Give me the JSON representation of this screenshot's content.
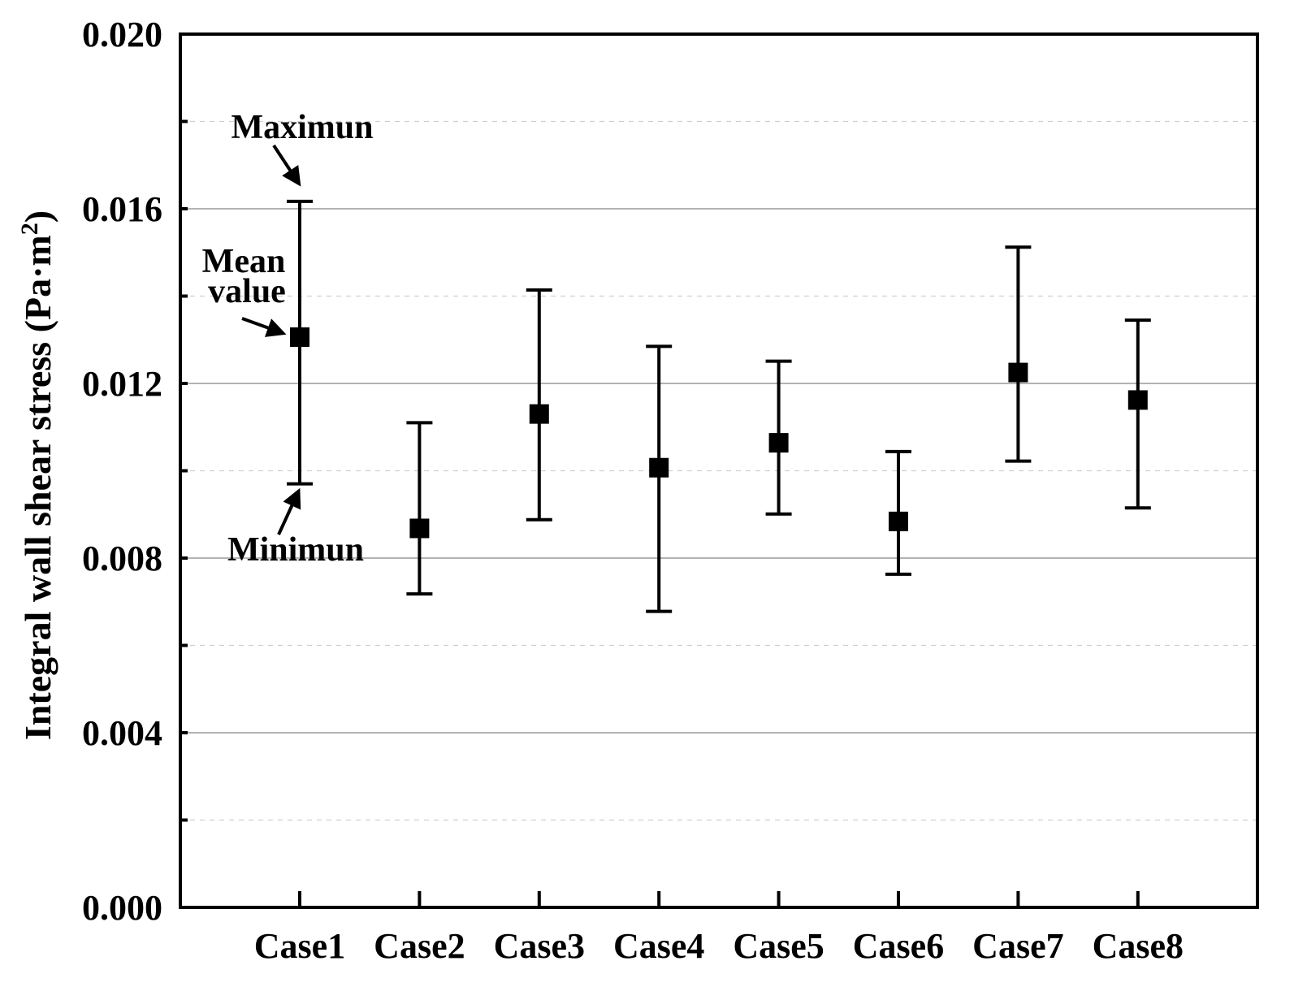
{
  "chart_data": {
    "type": "errorbar",
    "title": "",
    "xlabel": "",
    "ylabel": "Integral wall shear stress (Pa·m²)",
    "ylabel_parts": {
      "main": "Integral wall shear stress (Pa·m",
      "sup": "2",
      "close": ")"
    },
    "ylim": [
      0.0,
      0.02
    ],
    "yticks": [
      "0.000",
      "0.004",
      "0.008",
      "0.012",
      "0.016",
      "0.020"
    ],
    "ytick_values": [
      0.0,
      0.004,
      0.008,
      0.012,
      0.016,
      0.02
    ],
    "minor_ytick_values": [
      0.002,
      0.006,
      0.01,
      0.014,
      0.018
    ],
    "grid": true,
    "categories": [
      "Case1",
      "Case2",
      "Case3",
      "Case4",
      "Case5",
      "Case6",
      "Case7",
      "Case8"
    ],
    "series": [
      {
        "name": "Integral wall shear stress",
        "mean": [
          0.01306,
          0.00868,
          0.0113,
          0.01007,
          0.01064,
          0.00884,
          0.01225,
          0.01162
        ],
        "max": [
          0.01617,
          0.0111,
          0.01414,
          0.01285,
          0.01251,
          0.01044,
          0.01512,
          0.01345
        ],
        "min": [
          0.0097,
          0.00718,
          0.00888,
          0.00678,
          0.00901,
          0.00763,
          0.01022,
          0.00915
        ]
      }
    ],
    "annotations": [
      {
        "text": "Maximun",
        "points_to": "Case1 max"
      },
      {
        "text": "Mean",
        "points_to": "Case1 mean"
      },
      {
        "text": "value",
        "points_to": "Case1 mean"
      },
      {
        "text": "Minimun",
        "points_to": "Case1 min"
      }
    ],
    "colors": {
      "marker": "#000000",
      "grid_major": "#9a9a9a",
      "grid_minor": "#cfcfcf",
      "axis": "#000000"
    }
  }
}
